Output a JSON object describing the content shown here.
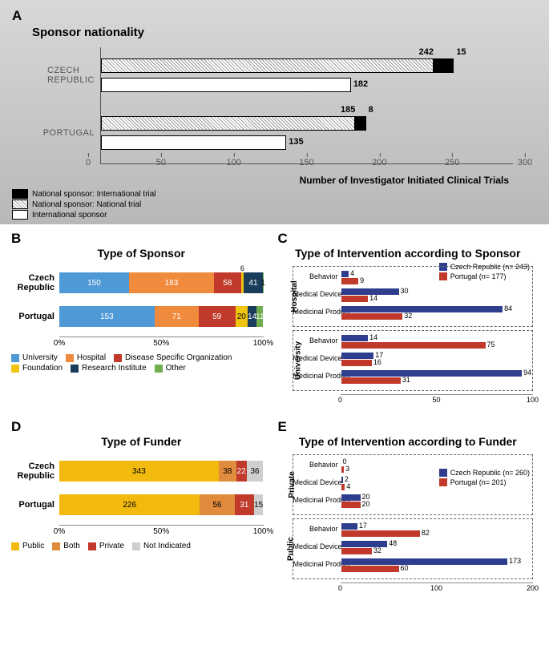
{
  "panelA": {
    "label": "A",
    "title": "Sponsor nationality",
    "xlabel": "Number of Investigator Initiated Clinical Trials",
    "xmax": 300,
    "ticks": [
      0,
      50,
      100,
      150,
      200,
      250,
      300
    ],
    "colors": {
      "black": "#000000",
      "hatch_bg": "#ffffff",
      "white": "#ffffff"
    },
    "legend": [
      {
        "label": "National sponsor: International trial",
        "fill": "black"
      },
      {
        "label": "National sponsor: National trial",
        "fill": "hatch"
      },
      {
        "label": "International sponsor",
        "fill": "white"
      }
    ],
    "groups": [
      {
        "name": "CZECH REPUBLIC",
        "bars": [
          {
            "type": "stack",
            "base": 242,
            "add": 15,
            "base_label": "242",
            "add_label": "15"
          },
          {
            "type": "single",
            "value": 182,
            "label": "182"
          }
        ]
      },
      {
        "name": "PORTUGAL",
        "bars": [
          {
            "type": "stack",
            "base": 185,
            "add": 8,
            "base_label": "185",
            "add_label": "8"
          },
          {
            "type": "single",
            "value": 135,
            "label": "135"
          }
        ]
      }
    ]
  },
  "panelB": {
    "label": "B",
    "title": "Type of Sponsor",
    "ticks": [
      "0%",
      "50%",
      "100%"
    ],
    "colors": {
      "university": "#4f9ad6",
      "hospital": "#f08b3d",
      "dso": "#c0392b",
      "foundation": "#f1c40f",
      "research": "#1a3d5c",
      "other": "#6fad4f"
    },
    "legend": [
      {
        "key": "university",
        "label": "University"
      },
      {
        "key": "hospital",
        "label": "Hospital"
      },
      {
        "key": "dso",
        "label": "Disease Specific Organization"
      },
      {
        "key": "foundation",
        "label": "Foundation"
      },
      {
        "key": "research",
        "label": "Research Institute"
      },
      {
        "key": "other",
        "label": "Other"
      }
    ],
    "rows": [
      {
        "name": "Czech Republic",
        "segs": [
          {
            "k": "university",
            "v": 150,
            "t": "150"
          },
          {
            "k": "hospital",
            "v": 183,
            "t": "183"
          },
          {
            "k": "dso",
            "v": 58,
            "t": "58"
          },
          {
            "k": "foundation",
            "v": 6,
            "t": "6",
            "above": true
          },
          {
            "k": "research",
            "v": 41,
            "t": "41"
          },
          {
            "k": "other",
            "v": 1,
            "t": " 1",
            "dark": true
          }
        ]
      },
      {
        "name": "Portugal",
        "segs": [
          {
            "k": "university",
            "v": 153,
            "t": "153"
          },
          {
            "k": "hospital",
            "v": 71,
            "t": "71"
          },
          {
            "k": "dso",
            "v": 59,
            "t": "59"
          },
          {
            "k": "foundation",
            "v": 20,
            "t": "20",
            "dark": true
          },
          {
            "k": "research",
            "v": 14,
            "t": "14"
          },
          {
            "k": "other",
            "v": 11,
            "t": "11"
          }
        ]
      }
    ]
  },
  "panelC": {
    "label": "C",
    "title": "Type of Intervention according to Sponsor",
    "xmax": 100,
    "ticks": [
      0,
      50,
      100
    ],
    "colors": {
      "cz": "#2f3d8f",
      "pt": "#c0392b"
    },
    "legend": [
      {
        "k": "cz",
        "label": "Czech Republic (n= 243)"
      },
      {
        "k": "pt",
        "label": "Portugal (n= 177)"
      }
    ],
    "blocks": [
      {
        "name": "Hospital",
        "rows": [
          {
            "label": "Behavior",
            "cz": 4,
            "pt": 9
          },
          {
            "label": "Medical Device",
            "cz": 30,
            "pt": 14
          },
          {
            "label": "Medicinal Product",
            "cz": 84,
            "pt": 32
          }
        ]
      },
      {
        "name": "University",
        "rows": [
          {
            "label": "Behavior",
            "cz": 14,
            "pt": 75
          },
          {
            "label": "Medical Device",
            "cz": 17,
            "pt": 16
          },
          {
            "label": "Medicinal Product",
            "cz": 94,
            "pt": 31
          }
        ]
      }
    ]
  },
  "panelD": {
    "label": "D",
    "title": "Type of Funder",
    "ticks": [
      "0%",
      "50%",
      "100%"
    ],
    "colors": {
      "public": "#f2b90f",
      "both": "#e08b3d",
      "private": "#c0392b",
      "ni": "#cfcfcf"
    },
    "legend": [
      {
        "key": "public",
        "label": "Public"
      },
      {
        "key": "both",
        "label": "Both"
      },
      {
        "key": "private",
        "label": "Private"
      },
      {
        "key": "ni",
        "label": "Not Indicated"
      }
    ],
    "rows": [
      {
        "name": "Czech Republic",
        "segs": [
          {
            "k": "public",
            "v": 343,
            "t": "343",
            "dark": true
          },
          {
            "k": "both",
            "v": 38,
            "t": "38",
            "dark": true
          },
          {
            "k": "private",
            "v": 22,
            "t": "22"
          },
          {
            "k": "ni",
            "v": 36,
            "t": "36",
            "dark": true
          }
        ]
      },
      {
        "name": "Portugal",
        "segs": [
          {
            "k": "public",
            "v": 226,
            "t": "226",
            "dark": true
          },
          {
            "k": "both",
            "v": 56,
            "t": "56",
            "dark": true
          },
          {
            "k": "private",
            "v": 31,
            "t": "31"
          },
          {
            "k": "ni",
            "v": 15,
            "t": "15",
            "dark": true
          }
        ]
      }
    ]
  },
  "panelE": {
    "label": "E",
    "title": "Type of Intervention according to Funder",
    "xmax": 200,
    "ticks": [
      0,
      100,
      200
    ],
    "colors": {
      "cz": "#2f3d8f",
      "pt": "#c0392b"
    },
    "legend": [
      {
        "k": "cz",
        "label": "Czech Republic (n= 260)"
      },
      {
        "k": "pt",
        "label": "Portugal (n= 201)"
      }
    ],
    "blocks": [
      {
        "name": "Private",
        "rows": [
          {
            "label": "Behavior",
            "cz": 0,
            "pt": 3
          },
          {
            "label": "Medical Device",
            "cz": 2,
            "pt": 4
          },
          {
            "label": "Medicinal Product",
            "cz": 20,
            "pt": 20
          }
        ]
      },
      {
        "name": "Public",
        "rows": [
          {
            "label": "Behavior",
            "cz": 17,
            "pt": 82
          },
          {
            "label": "Medical Device",
            "cz": 48,
            "pt": 32
          },
          {
            "label": "Medicinal Product",
            "cz": 173,
            "pt": 60
          }
        ]
      }
    ]
  }
}
